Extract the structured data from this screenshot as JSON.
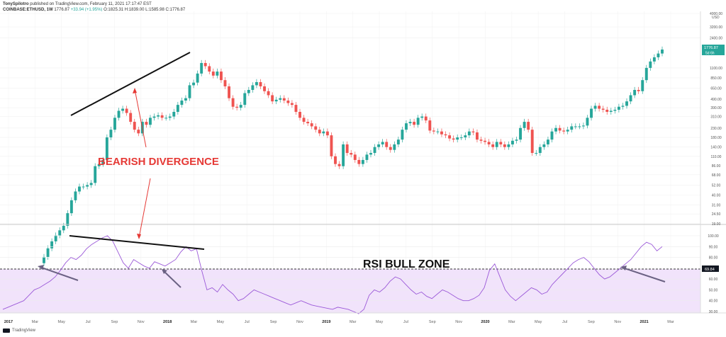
{
  "header": {
    "author": "TonySpilotro",
    "published": "published on TradingView.com, February 11, 2021 17:17:47 EST",
    "symbol": "COINBASE:ETHUSD, 1W",
    "last": "1776.87",
    "change": "+33.94 (+1.95%)",
    "ohlc": "O:1825.31 H:1839.00 L:1585.98 C:1776.87"
  },
  "footer": {
    "brand": "TradingView"
  },
  "chart_data": [
    {
      "type": "candlestick",
      "title": "COINBASE:ETHUSD, 1W",
      "scale": "log",
      "currency_label": "USD",
      "y_ticks": [
        "4000.00",
        "3200.00",
        "2400.00",
        "1776.87",
        "1100.00",
        "850.00",
        "650.00",
        "490.00",
        "390.00",
        "310.00",
        "230.00",
        "180.00",
        "140.00",
        "110.00",
        "86.00",
        "68.00",
        "52.00",
        "40.00",
        "31.00",
        "24.50",
        "19.00"
      ],
      "price_labels": {
        "last": "1776.87",
        "countdown": "5d 6h"
      },
      "x_ticks": [
        "2017",
        "Mar",
        "May",
        "Jul",
        "Sep",
        "Nov",
        "2018",
        "Mar",
        "May",
        "Jul",
        "Sep",
        "Nov",
        "2019",
        "Mar",
        "May",
        "Jul",
        "Sep",
        "Nov",
        "2020",
        "Mar",
        "May",
        "Jul",
        "Sep",
        "Nov",
        "2021",
        "Mar"
      ],
      "closes_weekly_approx": [
        8,
        10,
        12,
        14,
        16,
        18,
        25,
        35,
        44,
        50,
        50,
        52,
        55,
        85,
        90,
        100,
        180,
        220,
        300,
        360,
        380,
        340,
        270,
        220,
        200,
        270,
        250,
        300,
        310,
        320,
        300,
        300,
        310,
        350,
        420,
        470,
        500,
        700,
        750,
        950,
        1250,
        1150,
        1000,
        900,
        1000,
        800,
        680,
        500,
        400,
        390,
        420,
        570,
        620,
        700,
        760,
        680,
        600,
        540,
        460,
        480,
        500,
        470,
        440,
        420,
        350,
        300,
        270,
        260,
        240,
        220,
        200,
        210,
        190,
        110,
        90,
        85,
        150,
        120,
        115,
        100,
        90,
        100,
        115,
        120,
        140,
        150,
        160,
        140,
        130,
        150,
        170,
        220,
        260,
        270,
        250,
        300,
        310,
        280,
        215,
        210,
        210,
        195,
        190,
        175,
        170,
        180,
        180,
        190,
        210,
        205,
        170,
        165,
        160,
        150,
        140,
        160,
        150,
        140,
        150,
        165,
        170,
        230,
        270,
        220,
        120,
        120,
        140,
        150,
        170,
        210,
        230,
        215,
        210,
        220,
        240,
        240,
        240,
        245,
        300,
        380,
        410,
        380,
        370,
        350,
        360,
        370,
        400,
        410,
        460,
        540,
        620,
        600,
        800,
        1100,
        1300,
        1450,
        1600,
        1775
      ]
    },
    {
      "type": "line",
      "series": [
        {
          "name": "RSI"
        }
      ],
      "y_ticks": [
        "100.00",
        "90.00",
        "80.00",
        "69.84",
        "60.00",
        "50.00",
        "40.00",
        "30.00"
      ],
      "marker": "69.84",
      "values_approx": [
        32,
        34,
        36,
        38,
        40,
        45,
        50,
        52,
        55,
        58,
        62,
        68,
        75,
        80,
        78,
        82,
        88,
        92,
        95,
        98,
        100,
        95,
        85,
        75,
        70,
        78,
        75,
        72,
        70,
        76,
        74,
        72,
        75,
        78,
        85,
        90,
        86,
        88,
        68,
        50,
        52,
        48,
        55,
        50,
        46,
        40,
        42,
        46,
        50,
        48,
        46,
        44,
        42,
        40,
        38,
        36,
        38,
        40,
        38,
        36,
        35,
        34,
        33,
        32,
        34,
        33,
        32,
        30,
        28,
        32,
        45,
        50,
        48,
        52,
        58,
        62,
        60,
        55,
        50,
        46,
        48,
        44,
        42,
        46,
        50,
        48,
        45,
        42,
        40,
        40,
        42,
        45,
        52,
        68,
        74,
        62,
        50,
        44,
        40,
        44,
        48,
        52,
        50,
        46,
        48,
        55,
        60,
        65,
        70,
        75,
        78,
        80,
        76,
        70,
        64,
        60,
        62,
        66,
        70,
        74,
        78,
        84,
        90,
        94,
        92,
        86,
        90
      ]
    }
  ],
  "annotations": {
    "bearish_divergence": "BEARISH DIVERGENCE",
    "rsi_bull_zone": "RSI BULL ZONE"
  }
}
